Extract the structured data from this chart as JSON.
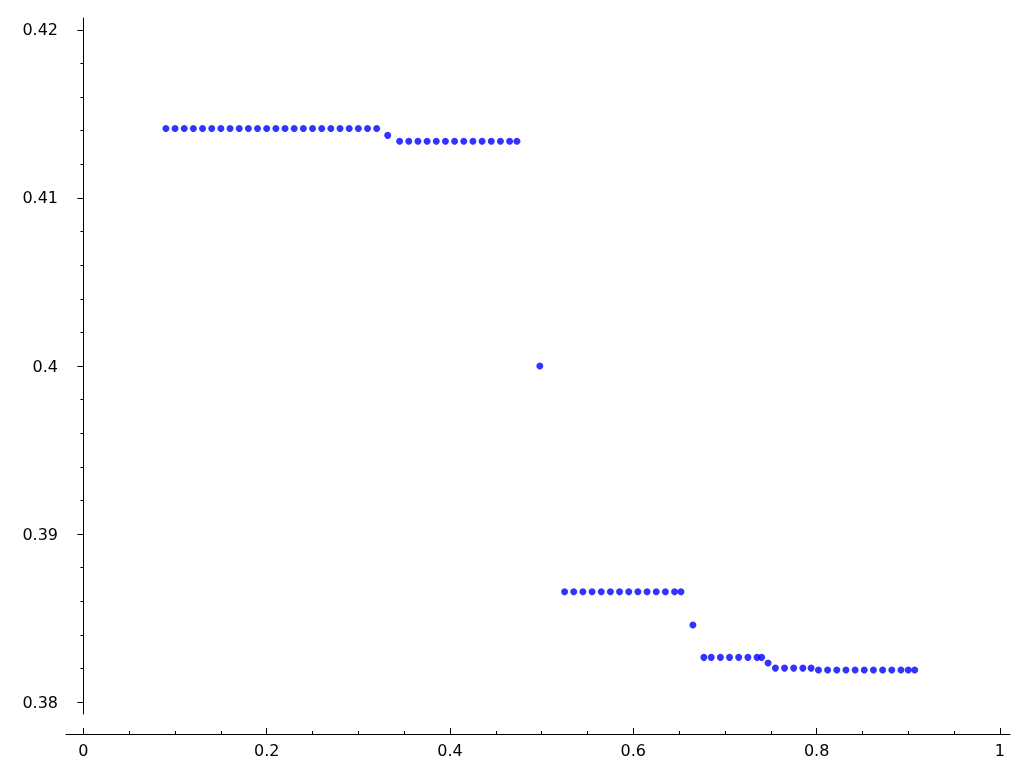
{
  "chart_data": {
    "type": "scatter",
    "marker": "circle",
    "grid": false,
    "xlim": [
      -0.019,
      1.011
    ],
    "xticks": [
      0,
      0.2,
      0.4,
      0.6,
      0.8,
      1
    ],
    "ylim": [
      0.3793,
      0.4207
    ],
    "yticks": [
      0.38,
      0.39,
      0.4,
      0.41,
      0.42
    ],
    "series": [
      {
        "color": "#0000ff",
        "x": [
          0.09,
          0.1,
          0.11,
          0.12,
          0.13,
          0.14,
          0.15,
          0.16,
          0.17,
          0.18,
          0.19,
          0.2,
          0.21,
          0.22,
          0.23,
          0.24,
          0.25,
          0.26,
          0.27,
          0.28,
          0.29,
          0.3,
          0.31,
          0.32,
          0.332,
          0.345,
          0.355,
          0.365,
          0.375,
          0.385,
          0.395,
          0.405,
          0.415,
          0.425,
          0.435,
          0.445,
          0.455,
          0.465,
          0.473,
          0.498,
          0.525,
          0.535,
          0.545,
          0.555,
          0.565,
          0.575,
          0.585,
          0.595,
          0.605,
          0.615,
          0.625,
          0.635,
          0.645,
          0.652,
          0.665,
          0.677,
          0.685,
          0.695,
          0.705,
          0.715,
          0.725,
          0.735,
          0.74,
          0.747,
          0.755,
          0.765,
          0.775,
          0.785,
          0.794,
          0.802,
          0.812,
          0.822,
          0.832,
          0.842,
          0.852,
          0.862,
          0.872,
          0.882,
          0.892,
          0.9,
          0.907
        ],
        "values": [
          0.41413,
          0.41413,
          0.41413,
          0.41413,
          0.41413,
          0.41413,
          0.41413,
          0.41413,
          0.41413,
          0.41413,
          0.41413,
          0.41413,
          0.41413,
          0.41413,
          0.41413,
          0.41413,
          0.41413,
          0.41413,
          0.41413,
          0.41413,
          0.41413,
          0.41413,
          0.41413,
          0.41413,
          0.41372,
          0.41337,
          0.41337,
          0.41337,
          0.41337,
          0.41337,
          0.41337,
          0.41337,
          0.41337,
          0.41337,
          0.41337,
          0.41337,
          0.41337,
          0.41337,
          0.41337,
          0.4,
          0.38657,
          0.38657,
          0.38657,
          0.38657,
          0.38657,
          0.38657,
          0.38657,
          0.38657,
          0.38657,
          0.38657,
          0.38657,
          0.38657,
          0.38657,
          0.38657,
          0.38459,
          0.38267,
          0.38267,
          0.38267,
          0.38267,
          0.38267,
          0.38267,
          0.38267,
          0.38267,
          0.38233,
          0.38203,
          0.38203,
          0.38203,
          0.38203,
          0.38203,
          0.38192,
          0.38192,
          0.38192,
          0.38192,
          0.38192,
          0.38192,
          0.38192,
          0.38192,
          0.38192,
          0.38192,
          0.38192,
          0.38192
        ]
      }
    ]
  }
}
